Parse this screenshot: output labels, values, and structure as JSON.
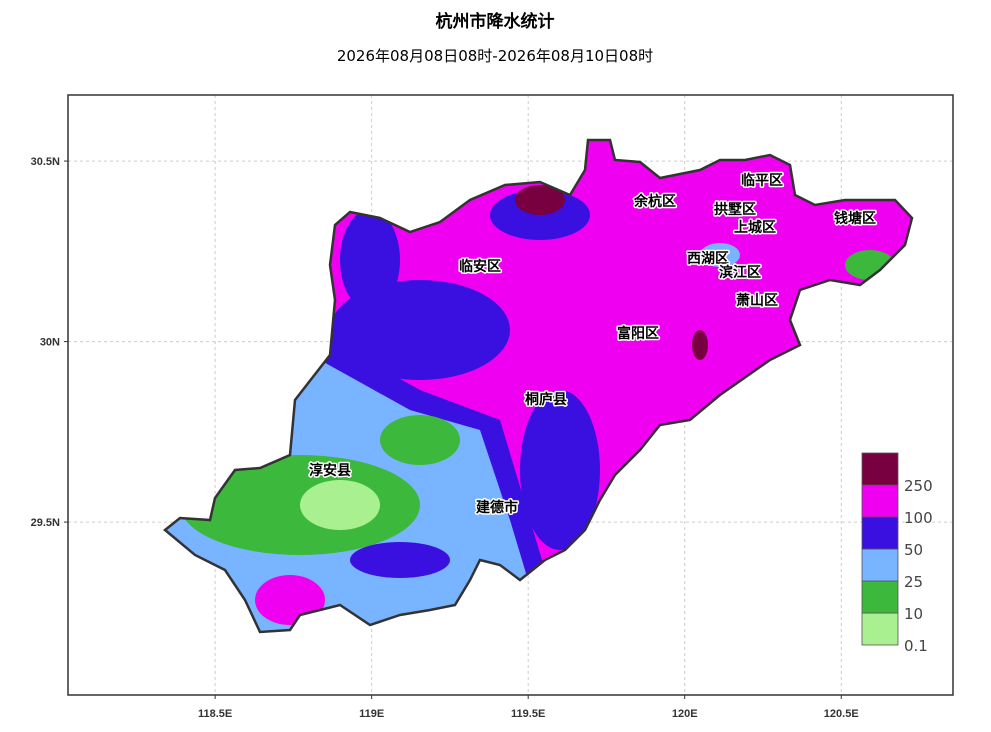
{
  "title": "杭州市降水统计",
  "subtitle": "2026年08月08日08时-2026年08月10日08时",
  "map": {
    "xlim": [
      118.03,
      120.857
    ],
    "ylim": [
      29.021,
      30.683
    ],
    "xticks": [
      {
        "value": 118.5,
        "label": "118.5E"
      },
      {
        "value": 119,
        "label": "119E"
      },
      {
        "value": 119.5,
        "label": "119.5E"
      },
      {
        "value": 120,
        "label": "120E"
      },
      {
        "value": 120.5,
        "label": "120.5E"
      }
    ],
    "yticks": [
      {
        "value": 29.5,
        "label": "29.5N"
      },
      {
        "value": 30,
        "label": "30N"
      },
      {
        "value": 30.5,
        "label": "30.5N"
      }
    ],
    "grid": true,
    "labels": [
      "余杭区",
      "临平区",
      "拱墅区",
      "上城区",
      "钱塘区",
      "西湖区",
      "滨江区",
      "临安区",
      "萧山区",
      "富阳区",
      "桐庐县",
      "淳安县",
      "建德市"
    ]
  },
  "legend": {
    "levels": [
      0.1,
      10,
      25,
      50,
      100,
      250
    ],
    "colors": [
      "#a8f090",
      "#3cb83c",
      "#78b4ff",
      "#3a10e0",
      "#f000f0",
      "#780040"
    ]
  }
}
